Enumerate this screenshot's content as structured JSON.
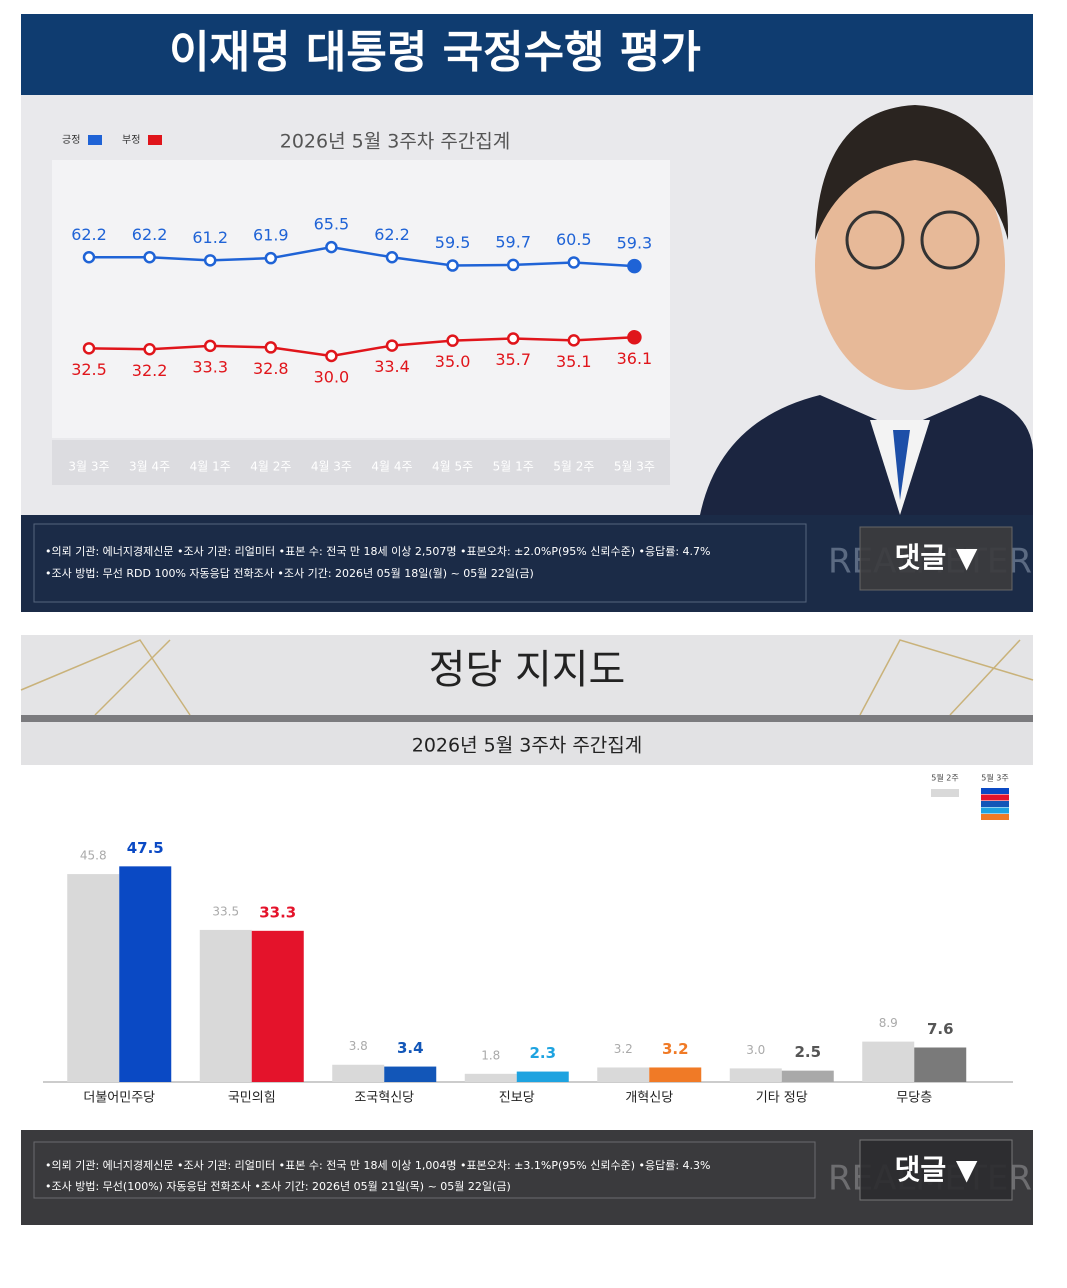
{
  "chart_data": [
    {
      "type": "line",
      "title": "이재명 대통령 국정수행 평가",
      "subtitle": "2026년 5월 3주차 주간집계",
      "categories": [
        "3월 3주",
        "3월 4주",
        "4월 1주",
        "4월 2주",
        "4월 3주",
        "4월 4주",
        "4월 5주",
        "5월 1주",
        "5월 2주",
        "5월 3주"
      ],
      "series": [
        {
          "name": "긍정",
          "color": "#1f63d6",
          "values": [
            62.2,
            62.2,
            61.2,
            61.9,
            65.5,
            62.2,
            59.5,
            59.7,
            60.5,
            59.3
          ],
          "value_labels": [
            "62.2",
            "62.2",
            "61.2",
            "61.9",
            "65.5",
            "62.2",
            "59.5",
            "59.7",
            "60.5",
            "59.3"
          ]
        },
        {
          "name": "부정",
          "color": "#e0151b",
          "values": [
            32.5,
            32.2,
            33.3,
            32.8,
            30.0,
            33.4,
            35.0,
            35.7,
            35.1,
            36.1
          ],
          "value_labels": [
            "32.5",
            "32.2",
            "33.3",
            "32.8",
            "30.0",
            "33.4",
            "35.0",
            "35.7",
            "35.1",
            "36.1"
          ]
        }
      ],
      "ylim": [
        0,
        90
      ],
      "notes": [
        "•의뢰 기관: 에너지경제신문 •조사 기관: 리얼미터 •표본 수: 전국 만 18세 이상 2,507명 •표본오차: ±2.0%P(95% 신뢰수준) •응답률: 4.7%",
        "•조사 방법: 무선 RDD 100% 자동응답 전화조사 •조사 기간: 2026년 05월 18일(월) ~ 05월 22일(금)"
      ],
      "watermark": "REALMETER",
      "button": "댓글 ▼"
    },
    {
      "type": "bar",
      "title": "정당 지지도",
      "subtitle": "2026년 5월 3주차 주간집계",
      "categories": [
        "더불어민주당",
        "국민의힘",
        "조국혁신당",
        "진보당",
        "개혁신당",
        "기타 정당",
        "무당층"
      ],
      "series": [
        {
          "name": "5월 2주",
          "color": "#d9d9d9",
          "values": [
            45.8,
            33.5,
            3.8,
            1.8,
            3.2,
            3.0,
            8.9
          ],
          "value_labels": [
            "45.8",
            "33.5",
            "3.8",
            "1.8",
            "3.2",
            "3.0",
            "8.9"
          ]
        },
        {
          "name": "5월 3주",
          "colors": [
            "#0a49c4",
            "#e4132b",
            "#1256b8",
            "#1ea3e0",
            "#f07a26",
            "#a9a9a9",
            "#7a7a7a"
          ],
          "values": [
            47.5,
            33.3,
            3.4,
            2.3,
            3.2,
            2.5,
            7.6
          ],
          "value_labels": [
            "47.5",
            "33.3",
            "3.4",
            "2.3",
            "3.2",
            "2.5",
            "7.6"
          ]
        }
      ],
      "ylim": [
        0,
        50
      ],
      "notes": [
        "•의뢰 기관: 에너지경제신문 •조사 기관: 리얼미터 •표본 수: 전국 만 18세 이상 1,004명 •표본오차: ±3.1%P(95% 신뢰수준) •응답률: 4.3%",
        "•조사 방법: 무선(100%) 자동응답 전화조사 •조사 기간: 2026년 05월 21일(목) ~ 05월 22일(금)"
      ],
      "watermark": "REALMETER",
      "button": "댓글 ▼"
    }
  ]
}
